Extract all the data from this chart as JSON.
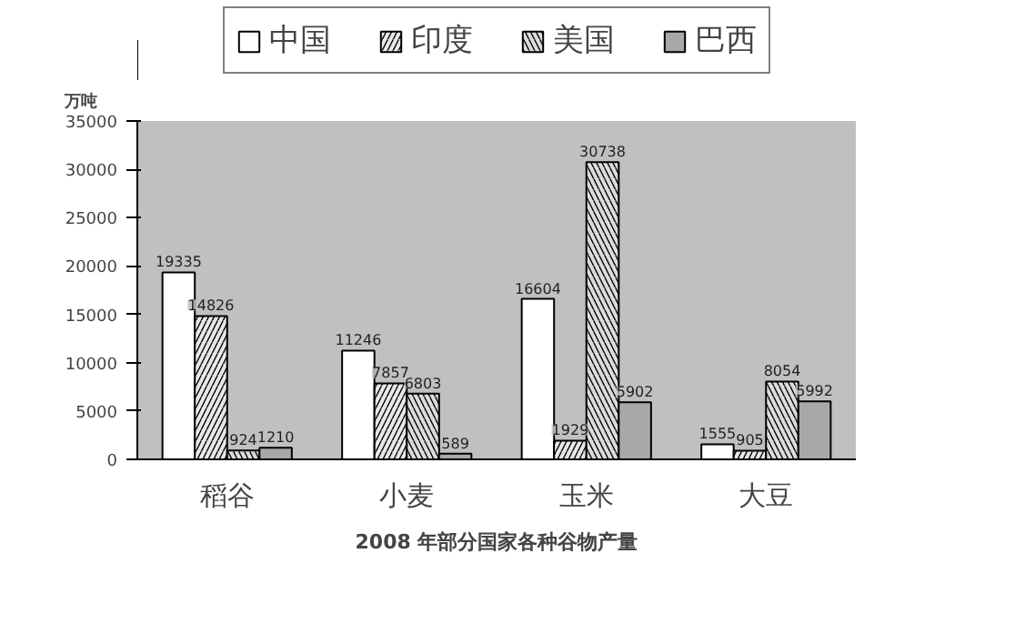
{
  "chart_data": {
    "type": "bar",
    "title": "2008 年部分国家各种谷物产量",
    "ylabel": "万吨",
    "categories": [
      "稻谷",
      "小麦",
      "玉米",
      "大豆"
    ],
    "series": [
      {
        "name": "中国",
        "color": "#ffffff",
        "values": [
          19335,
          11246,
          16604,
          1555
        ]
      },
      {
        "name": "印度",
        "color": "#e8e8e8",
        "values": [
          14826,
          7857,
          1929,
          905
        ]
      },
      {
        "name": "美国",
        "color": "#dcdcdc",
        "values": [
          924,
          6803,
          30738,
          8054
        ]
      },
      {
        "name": "巴西",
        "color": "#a8a8a8",
        "values": [
          1210,
          589,
          5902,
          5992
        ]
      }
    ],
    "ylim": [
      0,
      35000
    ],
    "yticks": [
      0,
      5000,
      10000,
      15000,
      20000,
      25000,
      30000,
      35000
    ],
    "data_labels": true,
    "legend": "top",
    "grid": false
  }
}
